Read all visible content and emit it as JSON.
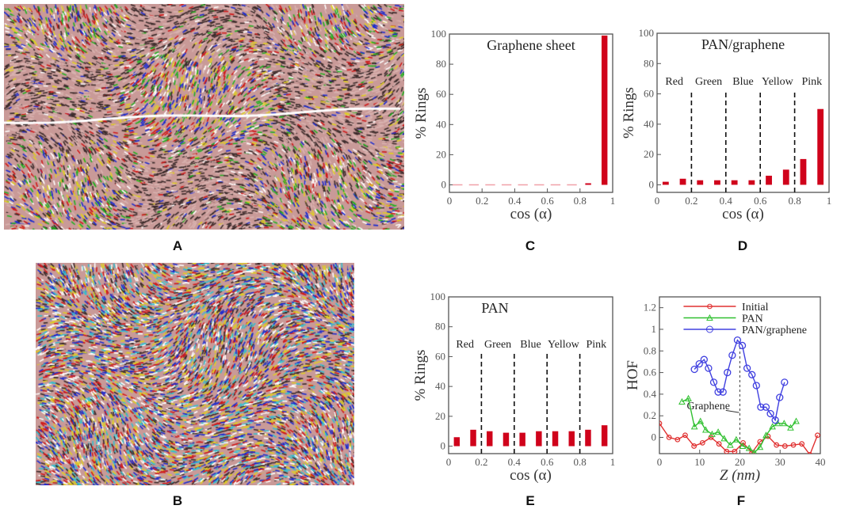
{
  "panels": {
    "A": {
      "label": "A"
    },
    "B": {
      "label": "B"
    },
    "C": {
      "label": "C"
    },
    "D": {
      "label": "D"
    },
    "E": {
      "label": "E"
    },
    "F": {
      "label": "F"
    }
  },
  "images": {
    "A": {
      "palette": [
        "#c99a98",
        "#d9b3b0",
        "#3a2a2a",
        "#ffffff",
        "#e0d020",
        "#20b020",
        "#1a2ad0",
        "#d01818"
      ],
      "has_crack_line": true
    },
    "B": {
      "palette": [
        "#c99a98",
        "#e0d020",
        "#1a2ad0",
        "#d01818",
        "#30c0d0",
        "#ffffff",
        "#3a2a2a"
      ]
    }
  },
  "colors": {
    "bar": "#d0021b",
    "zero_dash": "#f0a0a8",
    "initial": "#e03030",
    "pan": "#30c030",
    "pan_graphene": "#4040e0"
  },
  "chart_data": [
    {
      "id": "C",
      "type": "bar",
      "title": "Graphene sheet",
      "xlabel": "cos (α)",
      "ylabel": "% Rings",
      "xlim": [
        0,
        1
      ],
      "ylim": [
        0,
        100
      ],
      "xticks": [
        "0",
        "0.2",
        "0.4",
        "0.6",
        "0.8",
        "1"
      ],
      "yticks": [
        "0",
        "20",
        "40",
        "60",
        "80",
        "100"
      ],
      "x": [
        0.05,
        0.15,
        0.25,
        0.35,
        0.45,
        0.55,
        0.65,
        0.75,
        0.85,
        0.95
      ],
      "values": [
        0,
        0,
        0,
        0,
        0,
        0,
        0,
        0,
        1,
        99
      ],
      "bands": [],
      "grid": false
    },
    {
      "id": "D",
      "type": "bar",
      "title": "PAN/graphene",
      "xlabel": "cos (α)",
      "ylabel": "% Rings",
      "xlim": [
        0,
        1
      ],
      "ylim": [
        0,
        100
      ],
      "xticks": [
        "0",
        "0.2",
        "0.4",
        "0.6",
        "0.8",
        "1"
      ],
      "yticks": [
        "0",
        "20",
        "40",
        "60",
        "80",
        "100"
      ],
      "x": [
        0.05,
        0.15,
        0.25,
        0.35,
        0.45,
        0.55,
        0.65,
        0.75,
        0.85,
        0.95
      ],
      "values": [
        2,
        4,
        3,
        3,
        3,
        3,
        6,
        10,
        17,
        50
      ],
      "bands": [
        "Red",
        "Green",
        "Blue",
        "Yellow",
        "Pink"
      ],
      "band_dividers": [
        0.2,
        0.4,
        0.6,
        0.8
      ],
      "grid": false
    },
    {
      "id": "E",
      "type": "bar",
      "title": "PAN",
      "xlabel": "cos (α)",
      "ylabel": "% Rings",
      "xlim": [
        0,
        1
      ],
      "ylim": [
        0,
        100
      ],
      "xticks": [
        "0",
        "0.2",
        "0.4",
        "0.6",
        "0.8",
        "1"
      ],
      "yticks": [
        "0",
        "20",
        "40",
        "60",
        "80",
        "100"
      ],
      "x": [
        0.05,
        0.15,
        0.25,
        0.35,
        0.45,
        0.55,
        0.65,
        0.75,
        0.85,
        0.95
      ],
      "values": [
        6,
        11,
        10,
        9,
        9,
        10,
        10,
        10,
        11,
        14
      ],
      "bands": [
        "Red",
        "Green",
        "Blue",
        "Yellow",
        "Pink"
      ],
      "band_dividers": [
        0.2,
        0.4,
        0.6,
        0.8
      ],
      "grid": false
    },
    {
      "id": "F",
      "type": "line",
      "xlabel": "Z (nm)",
      "ylabel": "HOF",
      "xlim": [
        0,
        40
      ],
      "ylim": [
        -0.15,
        1.3
      ],
      "xticks": [
        "0",
        "10",
        "20",
        "30",
        "40"
      ],
      "yticks": [
        "0",
        "0.2",
        "0.4",
        "0.6",
        "0.8",
        "1",
        "1.2"
      ],
      "legend_position": "top",
      "annotation": {
        "text": "Graphene",
        "x": 20
      },
      "grid": false,
      "series": [
        {
          "name": "Initial",
          "marker": "square",
          "color": "#e03030",
          "x": [
            0,
            2.4,
            4.5,
            6.4,
            8.6,
            10.7,
            12.8,
            14.8,
            16.7,
            18.7,
            20.8,
            23,
            25,
            27,
            29.1,
            31.2,
            33.3,
            35.4,
            37.4,
            39.3
          ],
          "y": [
            0.13,
            0,
            -0.02,
            0.02,
            -0.08,
            -0.05,
            0,
            -0.06,
            -0.13,
            -0.13,
            -0.05,
            -0.14,
            -0.04,
            0.01,
            -0.07,
            -0.08,
            -0.07,
            -0.06,
            -0.16,
            0.02
          ]
        },
        {
          "name": "PAN",
          "marker": "triangle",
          "color": "#30c030",
          "x": [
            5.6,
            7.2,
            8.7,
            10.2,
            11.5,
            13.1,
            14.6,
            16.1,
            17.6,
            19.1,
            20.7,
            22.3,
            23.6,
            25,
            26.5,
            28.1,
            29.4,
            31,
            32.6,
            34
          ],
          "y": [
            0.33,
            0.36,
            0.1,
            0.15,
            0.07,
            0.03,
            0.05,
            -0.01,
            -0.07,
            -0.02,
            -0.08,
            -0.1,
            -0.14,
            -0.09,
            0.02,
            0.1,
            0.13,
            0.13,
            0.09,
            0.15
          ]
        },
        {
          "name": "PAN/graphene",
          "marker": "circle",
          "color": "#4040e0",
          "x": [
            8.7,
            9.9,
            11.1,
            12.2,
            13.5,
            14.6,
            15.8,
            16.9,
            18.1,
            19.4,
            20.6,
            21.8,
            23,
            24.1,
            25.2,
            26.5,
            27.6,
            28.8,
            29.9,
            31.1
          ],
          "y": [
            0.63,
            0.68,
            0.72,
            0.64,
            0.51,
            0.42,
            0.42,
            0.6,
            0.76,
            0.9,
            0.85,
            0.64,
            0.58,
            0.48,
            0.28,
            0.28,
            0.22,
            0.16,
            0.37,
            0.51
          ]
        }
      ]
    }
  ]
}
